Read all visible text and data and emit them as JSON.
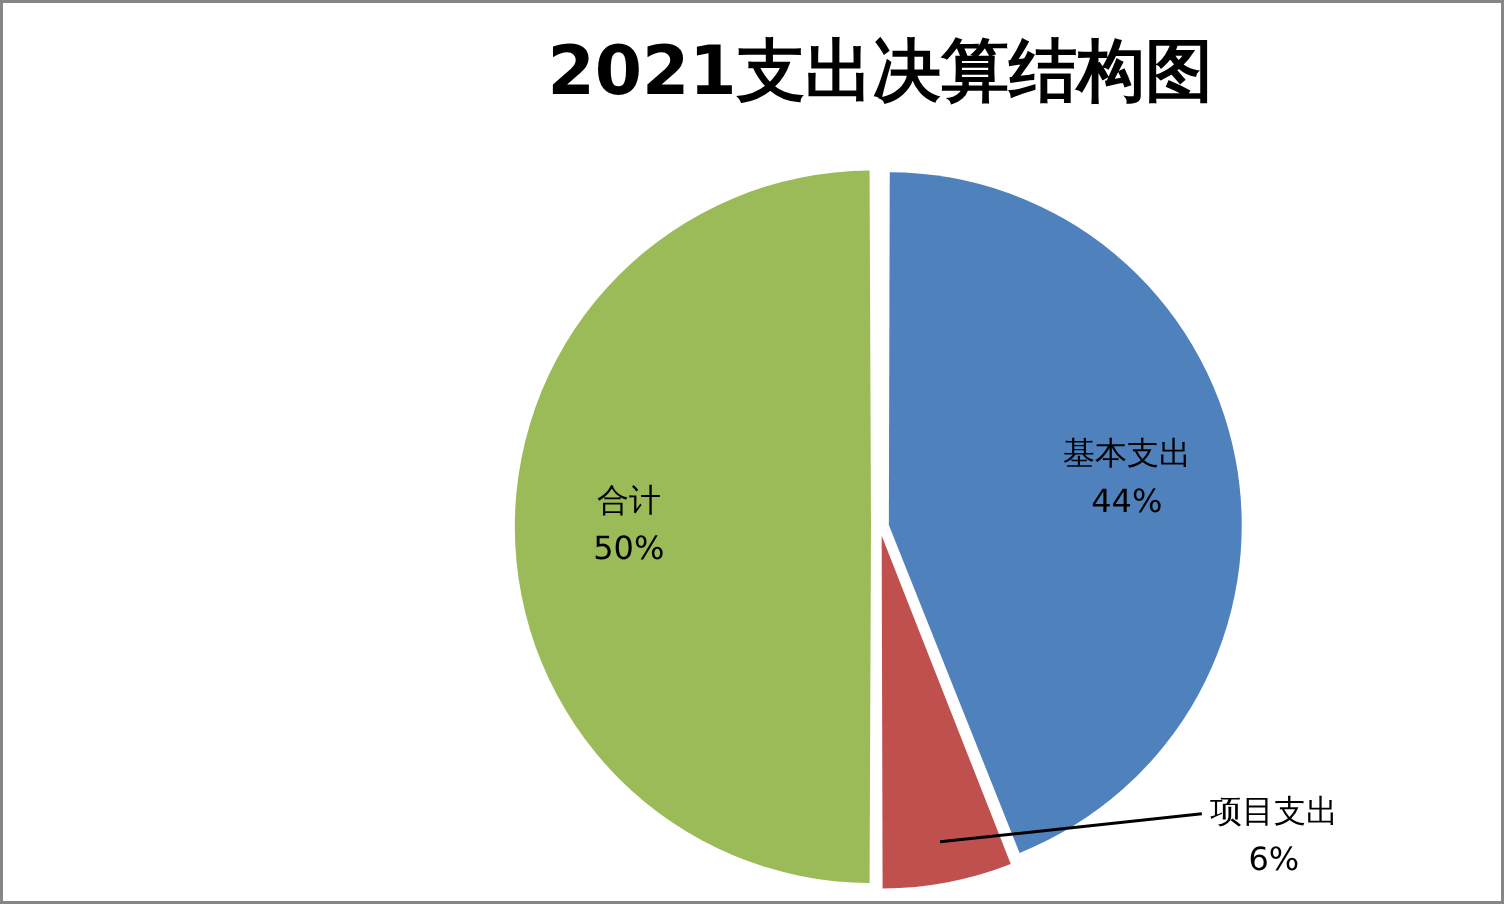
{
  "chart_data": {
    "type": "pie",
    "title": "2021支出决算结构图",
    "categories": [
      "基本支出",
      "项目支出",
      "合计"
    ],
    "values": [
      44,
      6,
      50
    ],
    "value_labels": [
      "44%",
      "6%",
      "50%"
    ],
    "colors": [
      "#4f81bd",
      "#c0504d",
      "#9bbb59"
    ]
  }
}
